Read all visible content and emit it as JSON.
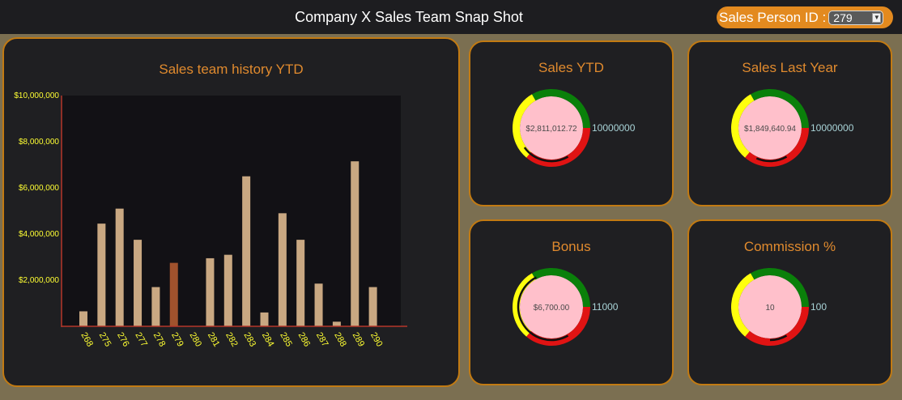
{
  "header": {
    "title": "Company X Sales Team Snap Shot",
    "sales_person_label": "Sales Person ID :",
    "sales_person_selected": "279"
  },
  "chart_panel": {
    "title": "Sales team history YTD"
  },
  "chart_data": {
    "type": "bar",
    "title": "Sales team history YTD",
    "xlabel": "",
    "ylabel": "",
    "categories": [
      "268",
      "275",
      "276",
      "277",
      "278",
      "279",
      "280",
      "281",
      "282",
      "283",
      "284",
      "285",
      "286",
      "287",
      "288",
      "289",
      "290"
    ],
    "values": [
      650000,
      4450000,
      5100000,
      3750000,
      1700000,
      2750000,
      0,
      2950000,
      3100000,
      6500000,
      600000,
      4900000,
      3750000,
      1850000,
      200000,
      7150000,
      1700000
    ],
    "highlight": "279",
    "ylim": [
      0,
      10000000
    ],
    "y_ticks": [
      2000000,
      4000000,
      6000000,
      8000000,
      10000000
    ],
    "y_tick_labels": [
      "$2,000,000",
      "$4,000,000",
      "$6,000,000",
      "$8,000,000",
      "$10,000,000"
    ],
    "grid": false,
    "bar_color": "#c9a882",
    "highlight_color": "#a0522d",
    "axis_color": "#b5372a",
    "tick_label_color": "#ffff33"
  },
  "gauges": [
    {
      "title": "Sales YTD",
      "value_text": "$2,811,012.72",
      "max_text": "10000000",
      "fraction": 0.28
    },
    {
      "title": "Sales Last Year",
      "value_text": "$1,849,640.94",
      "max_text": "10000000",
      "fraction": 0.18
    },
    {
      "title": "Bonus",
      "value_text": "$6,700.00",
      "max_text": "11000",
      "fraction": 0.61
    },
    {
      "title": "Commission %",
      "value_text": "10",
      "max_text": "100",
      "fraction": 0.1
    }
  ],
  "colors": {
    "zone_red": "#e01313",
    "zone_yellow": "#ffff0d",
    "zone_green": "#0a800a",
    "gauge_face": "#ffc0cb",
    "needle": "#111111"
  }
}
